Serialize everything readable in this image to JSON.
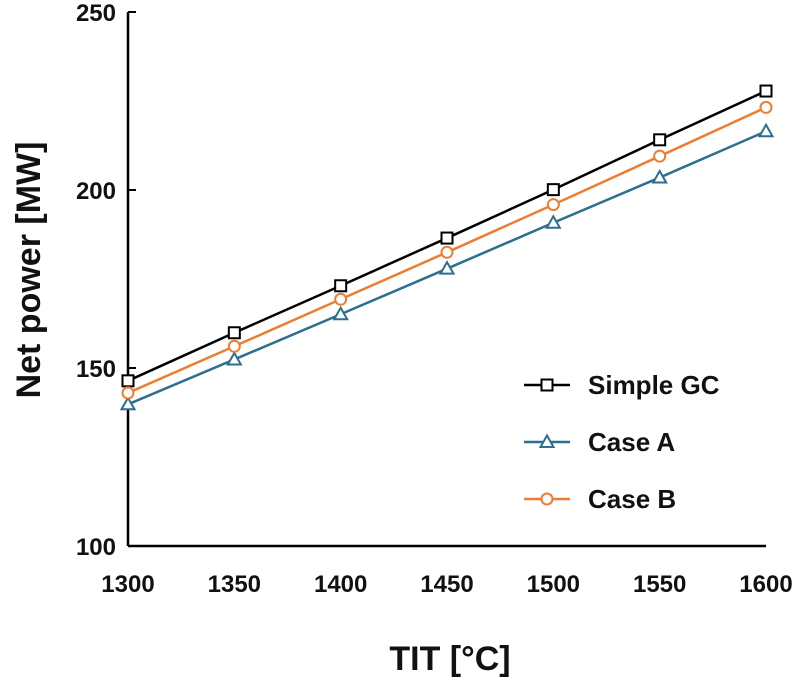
{
  "chart_data": {
    "type": "line",
    "xlabel": "TIT [°C]",
    "ylabel": "Net power [MW]",
    "xlim": [
      1300,
      1600
    ],
    "ylim": [
      100,
      250
    ],
    "x_ticks": [
      "1300",
      "1350",
      "1400",
      "1450",
      "1500",
      "1550",
      "1600"
    ],
    "y_ticks": [
      "100",
      "150",
      "200",
      "250"
    ],
    "grid": false,
    "legend_position": "bottom-right",
    "x": [
      1300,
      1350,
      1400,
      1450,
      1500,
      1550,
      1600
    ],
    "series": [
      {
        "name": "Simple GC",
        "marker": "square",
        "color": "#000000",
        "values": [
          146.4,
          159.9,
          173.1,
          186.5,
          200.1,
          214.1,
          227.8
        ]
      },
      {
        "name": "Case A",
        "marker": "triangle",
        "color": "#2e6e8e",
        "values": [
          139.8,
          152.4,
          165.1,
          177.9,
          190.8,
          203.5,
          216.5
        ]
      },
      {
        "name": "Case B",
        "marker": "circle",
        "color": "#ed7d31",
        "values": [
          143.0,
          156.1,
          169.3,
          182.5,
          195.9,
          209.5,
          223.2
        ]
      }
    ]
  }
}
